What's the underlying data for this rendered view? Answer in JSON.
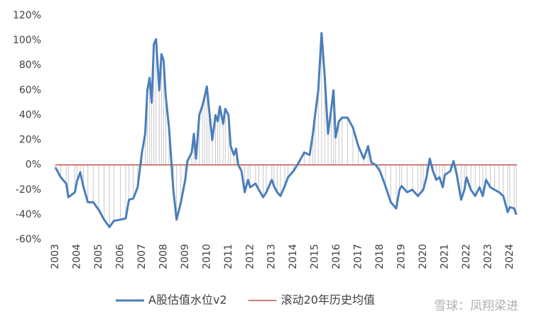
{
  "chart_data": {
    "type": "line",
    "xlim": [
      2003,
      2024.33
    ],
    "xticks": [
      2003,
      2004,
      2005,
      2006,
      2007,
      2008,
      2009,
      2010,
      2011,
      2012,
      2013,
      2014,
      2015,
      2016,
      2017,
      2018,
      2019,
      2020,
      2021,
      2022,
      2023,
      2024
    ],
    "ylim": [
      -60,
      120
    ],
    "yticks": [
      {
        "value": -60,
        "label": "-60%"
      },
      {
        "value": -40,
        "label": "-40%"
      },
      {
        "value": -20,
        "label": "-20%"
      },
      {
        "value": 0,
        "label": "0%"
      },
      {
        "value": 20,
        "label": "20%"
      },
      {
        "value": 40,
        "label": "40%"
      },
      {
        "value": 60,
        "label": "60%"
      },
      {
        "value": 80,
        "label": "80%"
      },
      {
        "value": 100,
        "label": "100%"
      },
      {
        "value": 120,
        "label": "120%"
      }
    ],
    "series": [
      {
        "name": "A股估值水位v2",
        "color": "#4a7ebb",
        "x": [
          2003.0,
          2003.25,
          2003.5,
          2003.6,
          2003.9,
          2004.0,
          2004.15,
          2004.3,
          2004.5,
          2004.75,
          2005.0,
          2005.25,
          2005.5,
          2005.7,
          2006.0,
          2006.25,
          2006.4,
          2006.6,
          2006.8,
          2007.0,
          2007.15,
          2007.25,
          2007.35,
          2007.45,
          2007.55,
          2007.65,
          2007.8,
          2007.9,
          2008.0,
          2008.1,
          2008.25,
          2008.35,
          2008.45,
          2008.6,
          2008.8,
          2009.0,
          2009.1,
          2009.3,
          2009.4,
          2009.5,
          2009.65,
          2009.8,
          2009.9,
          2010.0,
          2010.1,
          2010.25,
          2010.4,
          2010.5,
          2010.6,
          2010.75,
          2010.85,
          2011.0,
          2011.1,
          2011.25,
          2011.35,
          2011.45,
          2011.6,
          2011.75,
          2011.9,
          2012.0,
          2012.25,
          2012.4,
          2012.6,
          2012.75,
          2013.0,
          2013.1,
          2013.25,
          2013.4,
          2013.6,
          2013.75,
          2014.0,
          2014.25,
          2014.5,
          2014.75,
          2014.9,
          2015.0,
          2015.15,
          2015.3,
          2015.45,
          2015.6,
          2015.75,
          2015.85,
          2015.95,
          2016.1,
          2016.25,
          2016.5,
          2016.75,
          2017.0,
          2017.25,
          2017.45,
          2017.6,
          2017.8,
          2018.0,
          2018.25,
          2018.5,
          2018.75,
          2018.9,
          2019.0,
          2019.25,
          2019.5,
          2019.75,
          2019.9,
          2020.0,
          2020.15,
          2020.3,
          2020.45,
          2020.6,
          2020.75,
          2020.9,
          2021.0,
          2021.25,
          2021.4,
          2021.55,
          2021.75,
          2021.9,
          2022.0,
          2022.2,
          2022.4,
          2022.6,
          2022.75,
          2022.9,
          2023.1,
          2023.3,
          2023.5,
          2023.7,
          2023.9,
          2024.0,
          2024.2,
          2024.3
        ],
        "values": [
          -2,
          -10,
          -15,
          -26,
          -22,
          -13,
          -6,
          -18,
          -30,
          -30,
          -36,
          -44,
          -50,
          -45,
          -44,
          -43,
          -28,
          -27,
          -18,
          10,
          25,
          60,
          70,
          50,
          97,
          101,
          60,
          89,
          84,
          55,
          30,
          5,
          -20,
          -44,
          -30,
          -12,
          3,
          10,
          25,
          5,
          40,
          48,
          55,
          63,
          45,
          20,
          40,
          35,
          47,
          33,
          45,
          40,
          15,
          8,
          13,
          0,
          -5,
          -22,
          -12,
          -18,
          -15,
          -20,
          -26,
          -22,
          -12,
          -17,
          -22,
          -25,
          -17,
          -10,
          -5,
          2,
          10,
          8,
          25,
          40,
          60,
          106,
          70,
          25,
          45,
          60,
          22,
          35,
          38,
          38,
          30,
          15,
          5,
          15,
          2,
          0,
          -5,
          -17,
          -30,
          -35,
          -20,
          -17,
          -22,
          -20,
          -25,
          -22,
          -20,
          -10,
          5,
          -5,
          -12,
          -10,
          -18,
          -8,
          -5,
          3,
          -8,
          -28,
          -20,
          -10,
          -20,
          -25,
          -18,
          -25,
          -12,
          -18,
          -20,
          -22,
          -25,
          -38,
          -34,
          -35,
          -40
        ]
      },
      {
        "name": "滚动20年历史均值",
        "color": "#c0504d",
        "x": [
          2003,
          2024.33
        ],
        "values": [
          0,
          0
        ]
      }
    ],
    "watermark": "雪球：凤翔梁进"
  }
}
